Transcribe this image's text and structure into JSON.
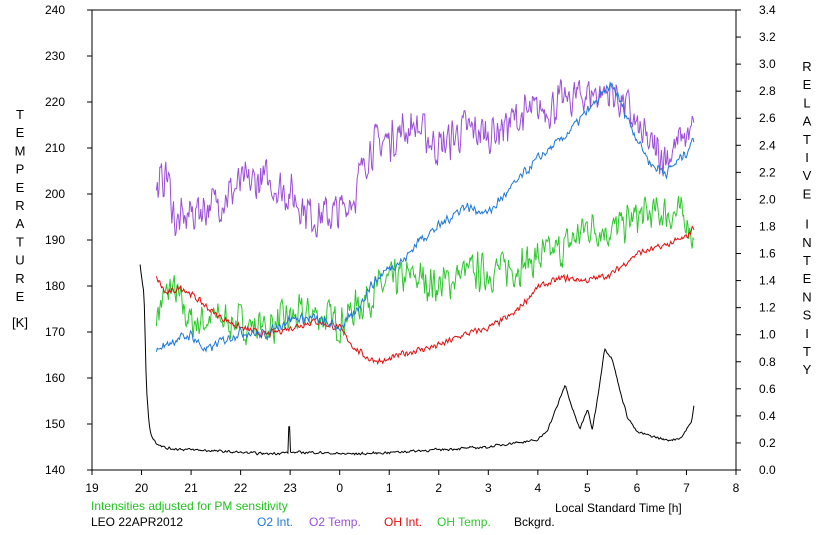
{
  "chart_data": {
    "type": "line",
    "xlabel": "Local Standard Time [h]",
    "ylabel_left": "TEMPERATURE [K]",
    "ylabel_left_letters": [
      "T",
      "E",
      "M",
      "P",
      "E",
      "R",
      "A",
      "T",
      "U",
      "R",
      "E",
      "",
      "[K]"
    ],
    "ylabel_right": "RELATIVE INTENSITY",
    "ylabel_right_letters": [
      "R",
      "E",
      "L",
      "A",
      "T",
      "I",
      "V",
      "E",
      "",
      "I",
      "N",
      "T",
      "E",
      "N",
      "S",
      "I",
      "T",
      "Y"
    ],
    "x_ticks": [
      19,
      20,
      21,
      22,
      23,
      0,
      1,
      2,
      3,
      4,
      5,
      6,
      7,
      8
    ],
    "x_tick_labels": [
      "19",
      "20",
      "21",
      "22",
      "23",
      "0",
      "1",
      "2",
      "3",
      "4",
      "5",
      "6",
      "7",
      "8"
    ],
    "xlim": [
      19,
      32
    ],
    "y_left_ticks": [
      140,
      150,
      160,
      170,
      180,
      190,
      200,
      210,
      220,
      230,
      240
    ],
    "y_left_tick_labels": [
      "140",
      "150",
      "160",
      "170",
      "180",
      "190",
      "200",
      "210",
      "220",
      "230",
      "240"
    ],
    "ylim_left": [
      140,
      240
    ],
    "y_right_ticks": [
      0.0,
      0.2,
      0.4,
      0.6,
      0.8,
      1.0,
      1.2,
      1.4,
      1.6,
      1.8,
      2.0,
      2.2,
      2.4,
      2.6,
      2.8,
      3.0,
      3.2,
      3.4
    ],
    "y_right_tick_labels": [
      "0.0",
      "0.2",
      "0.4",
      "0.6",
      "0.8",
      "1.0",
      "1.2",
      "1.4",
      "1.6",
      "1.8",
      "2.0",
      "2.2",
      "2.4",
      "2.6",
      "2.8",
      "3.0",
      "3.2",
      "3.4"
    ],
    "ylim_right": [
      0,
      3.4
    ],
    "grid": false,
    "note": "Intensities adjusted for PM sensitivity",
    "station_label": "LEO 22APR2012",
    "series": [
      {
        "name": "O2 Int.",
        "axis": "right",
        "color": "#1f78d8",
        "noise": 0.045,
        "x": [
          20.3,
          20.6,
          21.0,
          21.3,
          21.6,
          22.0,
          22.5,
          23.0,
          23.5,
          24.0,
          24.3,
          24.6,
          25.0,
          25.3,
          25.6,
          26.0,
          26.5,
          27.0,
          27.5,
          28.0,
          28.5,
          29.0,
          29.5,
          30.0,
          30.3,
          30.6,
          31.0,
          31.15
        ],
        "y": [
          0.88,
          0.95,
          1.0,
          0.88,
          0.95,
          1.02,
          1.0,
          1.12,
          1.12,
          1.05,
          1.15,
          1.35,
          1.5,
          1.55,
          1.7,
          1.8,
          1.95,
          1.9,
          2.1,
          2.3,
          2.45,
          2.65,
          2.85,
          2.45,
          2.25,
          2.2,
          2.35,
          2.45
        ]
      },
      {
        "name": "O2 Temp.",
        "axis": "left",
        "color": "#9a4fd8",
        "noise": 5.5,
        "x": [
          20.3,
          20.5,
          20.7,
          21.0,
          21.5,
          22.0,
          22.5,
          23.0,
          23.5,
          24.0,
          24.3,
          24.6,
          25.0,
          25.5,
          26.0,
          26.5,
          27.0,
          27.5,
          28.0,
          28.5,
          29.0,
          29.5,
          29.8,
          30.0,
          30.3,
          30.6,
          30.9,
          31.15
        ],
        "y": [
          200,
          205,
          193,
          196,
          198,
          202,
          203,
          200,
          195,
          196,
          200,
          210,
          212,
          215,
          210,
          214,
          213,
          216,
          218,
          220,
          222,
          222,
          219,
          214,
          210,
          208,
          212,
          214
        ]
      },
      {
        "name": "OH Int.",
        "axis": "right",
        "color": "#e0100f",
        "noise": 0.03,
        "x": [
          20.3,
          20.5,
          20.8,
          21.0,
          21.5,
          22.0,
          22.5,
          23.0,
          23.5,
          24.0,
          24.3,
          24.6,
          24.9,
          25.2,
          25.5,
          26.0,
          26.5,
          27.0,
          27.5,
          28.0,
          28.5,
          29.0,
          29.5,
          30.0,
          30.5,
          31.0,
          31.15
        ],
        "y": [
          1.42,
          1.3,
          1.35,
          1.3,
          1.15,
          1.05,
          1.0,
          1.05,
          1.1,
          1.05,
          0.9,
          0.82,
          0.8,
          0.85,
          0.88,
          0.92,
          1.0,
          1.05,
          1.15,
          1.35,
          1.42,
          1.4,
          1.45,
          1.6,
          1.65,
          1.72,
          1.8
        ]
      },
      {
        "name": "OH Temp.",
        "axis": "left",
        "color": "#2ec82e",
        "noise": 5.0,
        "x": [
          20.3,
          20.6,
          21.0,
          21.5,
          22.0,
          22.5,
          23.0,
          23.5,
          24.0,
          24.5,
          25.0,
          25.5,
          26.0,
          26.5,
          27.0,
          27.5,
          28.0,
          28.5,
          29.0,
          29.5,
          30.0,
          30.5,
          31.0,
          31.15
        ],
        "y": [
          174,
          180,
          172,
          173,
          172,
          171,
          173,
          174,
          172,
          177,
          181,
          182,
          180,
          183,
          183,
          184,
          186,
          188,
          193,
          192,
          195,
          196,
          195,
          190
        ]
      },
      {
        "name": "Bckgrd.",
        "axis": "right",
        "color": "#000000",
        "noise": 0.012,
        "x": [
          19.97,
          20.05,
          20.1,
          20.15,
          20.2,
          20.3,
          20.5,
          21.0,
          21.5,
          22.0,
          22.5,
          23.0,
          23.5,
          24.0,
          24.5,
          25.0,
          25.5,
          26.0,
          26.5,
          27.0,
          27.5,
          28.0,
          28.2,
          28.4,
          28.55,
          28.7,
          28.85,
          29.0,
          29.1,
          29.2,
          29.35,
          29.5,
          29.65,
          29.8,
          30.0,
          30.3,
          30.6,
          30.8,
          30.9,
          31.0,
          31.1,
          31.15
        ],
        "y": [
          1.52,
          1.3,
          0.6,
          0.35,
          0.25,
          0.2,
          0.16,
          0.15,
          0.14,
          0.13,
          0.12,
          0.13,
          0.13,
          0.12,
          0.12,
          0.13,
          0.14,
          0.15,
          0.16,
          0.17,
          0.2,
          0.22,
          0.3,
          0.48,
          0.63,
          0.45,
          0.3,
          0.45,
          0.3,
          0.52,
          0.9,
          0.82,
          0.6,
          0.4,
          0.28,
          0.25,
          0.22,
          0.23,
          0.24,
          0.3,
          0.35,
          0.48
        ]
      }
    ],
    "spikes": [
      {
        "series": "Bckgrd.",
        "x": 22.98,
        "y": 0.32
      },
      {
        "series": "Bckgrd.",
        "x": 27.9,
        "y": 0.22
      }
    ]
  }
}
